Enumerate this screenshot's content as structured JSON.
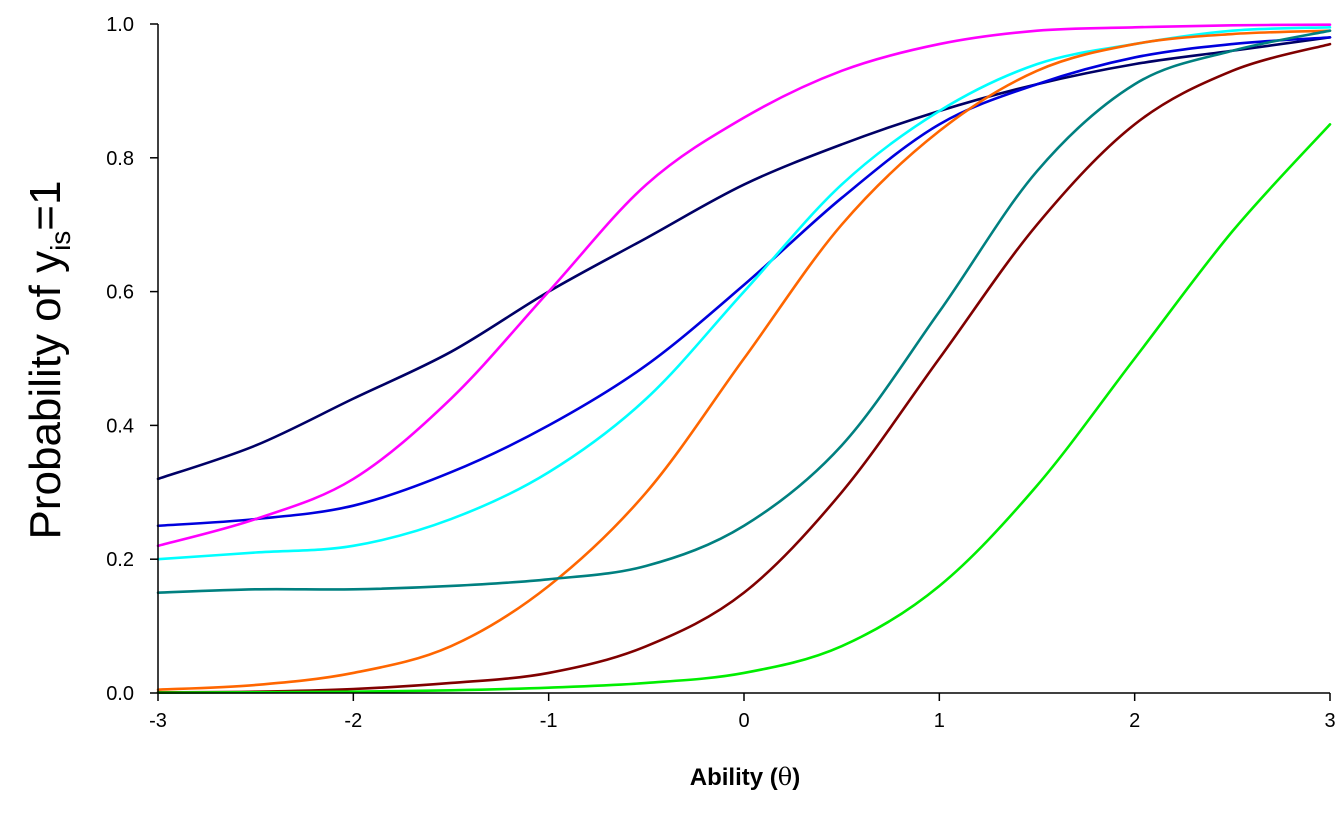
{
  "chart_data": {
    "type": "line",
    "title": "",
    "xlabel": {
      "main": "Ability (",
      "symbol": "θ",
      "close": ")"
    },
    "ylabel": {
      "main": "Probability of y",
      "subscript": "is",
      "suffix": "=1"
    },
    "xlim": [
      -3,
      3
    ],
    "ylim": [
      0,
      1
    ],
    "x_ticks": [
      -3,
      -2,
      -1,
      0,
      1,
      2,
      3
    ],
    "x_tick_labels": [
      "-3",
      "-2",
      "-1",
      "0",
      "1",
      "2",
      "3"
    ],
    "y_ticks": [
      0,
      0.2,
      0.4,
      0.6,
      0.8,
      1.0
    ],
    "y_tick_labels": [
      "0.0",
      "0.2",
      "0.4",
      "0.6",
      "0.8",
      "1.0"
    ],
    "grid": false,
    "legend": "none",
    "series": [
      {
        "color": "#000066",
        "x": [
          -3,
          -2.5,
          -2,
          -1.5,
          -1,
          -0.5,
          0,
          0.5,
          1,
          1.5,
          2,
          2.5,
          3
        ],
        "y": [
          0.32,
          0.37,
          0.44,
          0.51,
          0.6,
          0.68,
          0.76,
          0.82,
          0.87,
          0.91,
          0.94,
          0.96,
          0.98
        ]
      },
      {
        "color": "#0000dd",
        "x": [
          -3,
          -2.5,
          -2,
          -1.5,
          -1,
          -0.5,
          0,
          0.5,
          1,
          1.5,
          2,
          2.5,
          3
        ],
        "y": [
          0.25,
          0.26,
          0.28,
          0.33,
          0.4,
          0.49,
          0.61,
          0.74,
          0.85,
          0.91,
          0.95,
          0.97,
          0.98
        ]
      },
      {
        "color": "#ff00ff",
        "x": [
          -3,
          -2.5,
          -2,
          -1.5,
          -1,
          -0.5,
          0,
          0.5,
          1,
          1.5,
          2,
          2.5,
          3
        ],
        "y": [
          0.22,
          0.26,
          0.32,
          0.44,
          0.6,
          0.76,
          0.86,
          0.93,
          0.97,
          0.99,
          0.995,
          0.998,
          0.999
        ]
      },
      {
        "color": "#00ffff",
        "x": [
          -3,
          -2.5,
          -2,
          -1.5,
          -1,
          -0.5,
          0,
          0.5,
          1,
          1.5,
          2,
          2.5,
          3
        ],
        "y": [
          0.2,
          0.21,
          0.22,
          0.26,
          0.33,
          0.44,
          0.6,
          0.76,
          0.87,
          0.94,
          0.97,
          0.99,
          0.995
        ]
      },
      {
        "color": "#ff6600",
        "x": [
          -3,
          -2.5,
          -2,
          -1.5,
          -1,
          -0.5,
          0,
          0.5,
          1,
          1.5,
          2,
          2.5,
          3
        ],
        "y": [
          0.005,
          0.012,
          0.03,
          0.07,
          0.16,
          0.3,
          0.5,
          0.7,
          0.84,
          0.93,
          0.97,
          0.985,
          0.99
        ]
      },
      {
        "color": "#008080",
        "x": [
          -3,
          -2.5,
          -2,
          -1.5,
          -1,
          -0.5,
          0,
          0.5,
          1,
          1.5,
          2,
          2.5,
          3
        ],
        "y": [
          0.15,
          0.155,
          0.155,
          0.16,
          0.17,
          0.19,
          0.25,
          0.37,
          0.57,
          0.78,
          0.91,
          0.96,
          0.99
        ]
      },
      {
        "color": "#800000",
        "x": [
          -3,
          -2.5,
          -2,
          -1.5,
          -1,
          -0.5,
          0,
          0.5,
          1,
          1.5,
          2,
          2.5,
          3
        ],
        "y": [
          0.001,
          0.002,
          0.006,
          0.015,
          0.03,
          0.07,
          0.15,
          0.3,
          0.5,
          0.7,
          0.85,
          0.93,
          0.97
        ]
      },
      {
        "color": "#00ee00",
        "x": [
          -3,
          -2.5,
          -2,
          -1.5,
          -1,
          -0.5,
          0,
          0.5,
          1,
          1.5,
          2,
          2.5,
          3
        ],
        "y": [
          0.0005,
          0.001,
          0.002,
          0.004,
          0.008,
          0.015,
          0.03,
          0.07,
          0.16,
          0.31,
          0.5,
          0.69,
          0.85
        ]
      }
    ]
  }
}
